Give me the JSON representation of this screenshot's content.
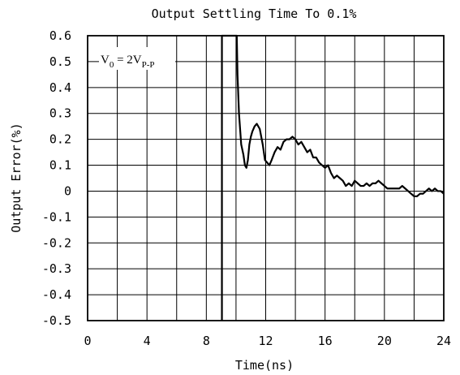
{
  "chart_data": {
    "type": "line",
    "title": "Output Settling Time To 0.1%",
    "xlabel": "Time(ns)",
    "ylabel": "Output Error(%)",
    "xlim": [
      0,
      24
    ],
    "ylim": [
      -0.5,
      0.6
    ],
    "xticks": [
      0,
      4,
      8,
      12,
      16,
      20,
      24
    ],
    "xtick_labels": [
      "0",
      "4",
      "8",
      "12",
      "16",
      "20",
      "24"
    ],
    "yticks": [
      0.6,
      0.5,
      0.4,
      0.3,
      0.2,
      0.1,
      0,
      -0.1,
      -0.2,
      -0.3,
      -0.4,
      -0.5
    ],
    "ytick_labels": [
      "0.6",
      "0.5",
      "0.4",
      "0.3",
      "0.2",
      "0.1",
      "0",
      "-0.1",
      "-0.2",
      "-0.3",
      "-0.4",
      "-0.5"
    ],
    "grid": true,
    "annotation": {
      "V": "V",
      "sub0": "0",
      "eq": " = 2V",
      "subpp": "P-P"
    },
    "series": [
      {
        "color": "#000000",
        "x": [
          9.05,
          9.05,
          10.05,
          10.1,
          10.2,
          10.35,
          10.5,
          10.6,
          10.7,
          10.8,
          10.9,
          11.0,
          11.1,
          11.25,
          11.4,
          11.6,
          11.8,
          11.95,
          12.1,
          12.25,
          12.4,
          12.6,
          12.8,
          13.0,
          13.2,
          13.4,
          13.6,
          13.8,
          14.0,
          14.2,
          14.4,
          14.6,
          14.8,
          15.0,
          15.2,
          15.4,
          15.6,
          15.8,
          16.0,
          16.2,
          16.4,
          16.6,
          16.8,
          17.0,
          17.2,
          17.4,
          17.6,
          17.8,
          18.0,
          18.2,
          18.4,
          18.6,
          18.8,
          19.0,
          19.2,
          19.4,
          19.6,
          19.8,
          20.0,
          20.2,
          20.4,
          20.6,
          20.8,
          21.0,
          21.2,
          21.4,
          21.6,
          21.8,
          22.0,
          22.2,
          22.4,
          22.6,
          22.8,
          23.0,
          23.2,
          23.4,
          23.6,
          23.8,
          24.0
        ],
        "y": [
          -0.5,
          0.6,
          0.6,
          0.45,
          0.3,
          0.18,
          0.14,
          0.1,
          0.09,
          0.12,
          0.18,
          0.21,
          0.23,
          0.25,
          0.26,
          0.24,
          0.18,
          0.12,
          0.11,
          0.1,
          0.12,
          0.15,
          0.17,
          0.16,
          0.19,
          0.2,
          0.2,
          0.21,
          0.2,
          0.18,
          0.19,
          0.17,
          0.15,
          0.16,
          0.13,
          0.13,
          0.11,
          0.1,
          0.09,
          0.1,
          0.07,
          0.05,
          0.06,
          0.05,
          0.04,
          0.02,
          0.03,
          0.02,
          0.04,
          0.03,
          0.02,
          0.02,
          0.03,
          0.02,
          0.03,
          0.03,
          0.04,
          0.03,
          0.02,
          0.01,
          0.01,
          0.01,
          0.01,
          0.01,
          0.02,
          0.01,
          0.0,
          -0.01,
          -0.02,
          -0.02,
          -0.01,
          -0.01,
          0.0,
          0.01,
          0.0,
          0.01,
          0.0,
          0.0,
          -0.01
        ]
      }
    ]
  }
}
